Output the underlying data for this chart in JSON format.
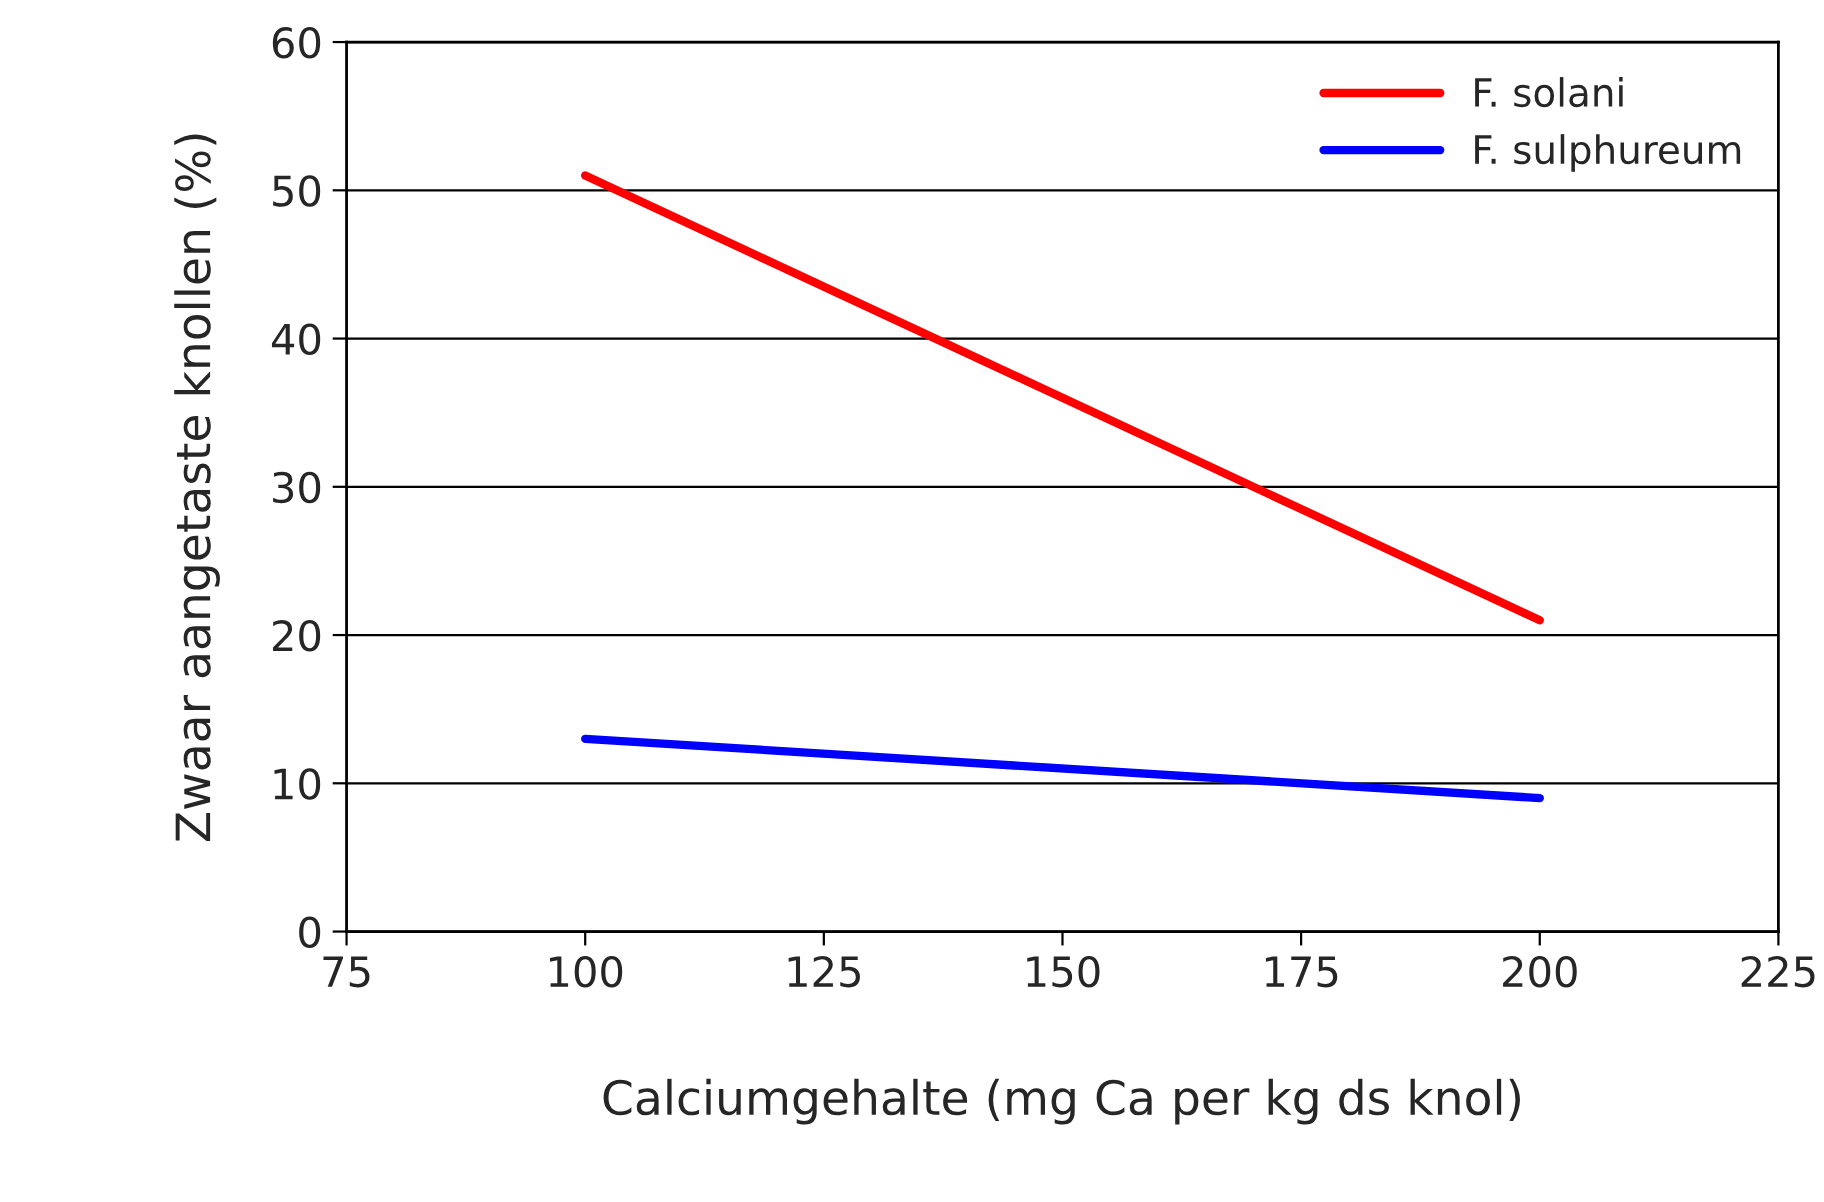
{
  "chart_data": {
    "type": "line",
    "xlabel": "Calciumgehalte (mg Ca per kg ds knol)",
    "ylabel": "Zwaar aangetaste knollen (%)",
    "x": [
      100,
      200
    ],
    "series": [
      {
        "name": "F. solani",
        "color": "#ff0000",
        "values": [
          51,
          21
        ]
      },
      {
        "name": "F. sulphureum",
        "color": "#0000ff",
        "values": [
          13,
          9
        ]
      }
    ],
    "xlim": [
      75,
      225
    ],
    "xticks": [
      75,
      100,
      125,
      150,
      175,
      200,
      225
    ],
    "ylim": [
      0,
      60
    ],
    "yticks": [
      0,
      10,
      20,
      30,
      40,
      50,
      60
    ],
    "grid": "y",
    "legend": "top right",
    "marker": "none",
    "line_style": "solid"
  }
}
